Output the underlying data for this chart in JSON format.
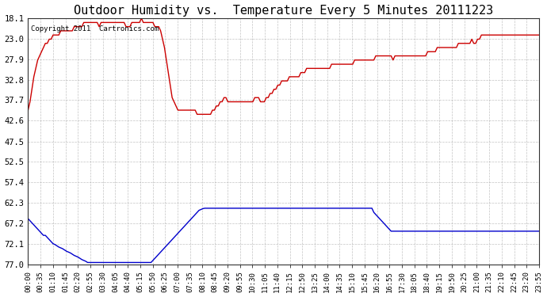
{
  "title": "Outdoor Humidity vs.  Temperature Every 5 Minutes 20111223",
  "copyright": "Copyright 2011  Cartronics.com",
  "background_color": "#ffffff",
  "plot_bg_color": "#ffffff",
  "grid_color": "#aaaaaa",
  "line1_color": "#cc0000",
  "line2_color": "#0000cc",
  "ylabel_right": [
    "77.0",
    "72.1",
    "67.2",
    "62.3",
    "57.4",
    "52.5",
    "47.5",
    "42.6",
    "37.7",
    "32.8",
    "27.9",
    "23.0",
    "18.1"
  ],
  "ylim": [
    18.1,
    77.0
  ],
  "yticks": [
    18.1,
    23.0,
    27.9,
    32.8,
    37.7,
    42.6,
    47.5,
    52.5,
    57.4,
    62.3,
    67.2,
    72.1,
    77.0
  ],
  "humidity_data": [
    55,
    57,
    60,
    63,
    65,
    67,
    68,
    69,
    70,
    71,
    71,
    72,
    72,
    73,
    73,
    73,
    73,
    74,
    74,
    74,
    74,
    74,
    74,
    74,
    75,
    75,
    75,
    75,
    75,
    76,
    76,
    76,
    76,
    76,
    76,
    76,
    76,
    75,
    76,
    76,
    76,
    76,
    76,
    76,
    76,
    76,
    76,
    76,
    76,
    76,
    76,
    75,
    75,
    75,
    76,
    76,
    76,
    76,
    76,
    77,
    76,
    76,
    76,
    76,
    76,
    76,
    75,
    75,
    75,
    74,
    72,
    70,
    67,
    64,
    61,
    58,
    57,
    56,
    55,
    55,
    55,
    55,
    55,
    55,
    55,
    55,
    55,
    55,
    54,
    54,
    54,
    54,
    54,
    54,
    54,
    54,
    55,
    55,
    56,
    56,
    57,
    57,
    58,
    58,
    57,
    57,
    57,
    57,
    57,
    57,
    57,
    57,
    57,
    57,
    57,
    57,
    57,
    57,
    58,
    58,
    58,
    57,
    57,
    57,
    58,
    58,
    59,
    59,
    60,
    60,
    61,
    61,
    62,
    62,
    62,
    62,
    63,
    63,
    63,
    63,
    63,
    63,
    64,
    64,
    64,
    65,
    65,
    65,
    65,
    65,
    65,
    65,
    65,
    65,
    65,
    65,
    65,
    65,
    66,
    66,
    66,
    66,
    66,
    66,
    66,
    66,
    66,
    66,
    66,
    66,
    67,
    67,
    67,
    67,
    67,
    67,
    67,
    67,
    67,
    67,
    67,
    68,
    68,
    68,
    68,
    68,
    68,
    68,
    68,
    68,
    67,
    68,
    68,
    68,
    68,
    68,
    68,
    68,
    68,
    68,
    68,
    68,
    68,
    68,
    68,
    68,
    68,
    68,
    69,
    69,
    69,
    69,
    69,
    70,
    70,
    70,
    70,
    70,
    70,
    70,
    70,
    70,
    70,
    70,
    71,
    71,
    71,
    71,
    71,
    71,
    71,
    72,
    71,
    71,
    72,
    72,
    73,
    73,
    73,
    73,
    73,
    73,
    73,
    73,
    73,
    73,
    73,
    73,
    73,
    73,
    73,
    73,
    73,
    73,
    73,
    73,
    73,
    73,
    73,
    73,
    73,
    73,
    73,
    73,
    73,
    73,
    73,
    73,
    73,
    73,
    73,
    73,
    73,
    73,
    73,
    73,
    73,
    73,
    73,
    73,
    73,
    73,
    73,
    73,
    73,
    73,
    73,
    73
  ],
  "temperature_data": [
    29,
    28.5,
    28,
    27.5,
    27,
    26.5,
    26,
    25.5,
    25,
    25,
    24.5,
    24,
    23.5,
    23,
    22.8,
    22.5,
    22.2,
    22,
    21.8,
    21.5,
    21.2,
    21,
    20.8,
    20.5,
    20.2,
    20,
    19.8,
    19.5,
    19.2,
    19,
    18.8,
    18.5,
    18.5,
    18.5,
    18.5,
    18.5,
    18.5,
    18.5,
    18.5,
    18.5,
    18.5,
    18.5,
    18.5,
    18.5,
    18.5,
    18.5,
    18.5,
    18.5,
    18.5,
    18.5,
    18.5,
    18.5,
    18.5,
    18.5,
    18.5,
    18.5,
    18.5,
    18.5,
    18.5,
    18.5,
    18.5,
    18.5,
    18.5,
    18.5,
    18.5,
    19,
    19.5,
    20,
    20.5,
    21,
    21.5,
    22,
    22.5,
    23,
    23.5,
    24,
    24.5,
    25,
    25.5,
    26,
    26.5,
    27,
    27.5,
    28,
    28.5,
    29,
    29.5,
    30,
    30.5,
    31,
    31.2,
    31.4,
    31.5,
    31.5,
    31.5,
    31.5,
    31.5,
    31.5,
    31.5,
    31.5,
    31.5,
    31.5,
    31.5,
    31.5,
    31.5,
    31.5,
    31.5,
    31.5,
    31.5,
    31.5,
    31.5,
    31.5,
    31.5,
    31.5,
    31.5,
    31.5,
    31.5,
    31.5,
    31.5,
    31.5,
    31.5,
    31.5,
    31.5,
    31.5,
    31.5,
    31.5,
    31.5,
    31.5,
    31.5,
    31.5,
    31.5,
    31.5,
    31.5,
    31.5,
    31.5,
    31.5,
    31.5,
    31.5,
    31.5,
    31.5,
    31.5,
    31.5,
    31.5,
    31.5,
    31.5,
    31.5,
    31.5,
    31.5,
    31.5,
    31.5,
    31.5,
    31.5,
    31.5,
    31.5,
    31.5,
    31.5,
    31.5,
    31.5,
    31.5,
    31.5,
    31.5,
    31.5,
    31.5,
    31.5,
    31.5,
    31.5,
    31.5,
    31.5,
    31.5,
    31.5,
    31.5,
    31.5,
    31.5,
    31.5,
    31.5,
    31.5,
    31.5,
    31.5,
    31.5,
    31.5,
    30.5,
    30,
    29.5,
    29,
    28.5,
    28,
    27.5,
    27,
    26.5,
    26,
    26,
    26,
    26,
    26,
    26,
    26,
    26,
    26,
    26,
    26,
    26,
    26,
    26,
    26,
    26,
    26,
    26,
    26,
    26,
    26,
    26,
    26,
    26,
    26,
    26,
    26,
    26,
    26,
    26,
    26,
    26,
    26,
    26,
    26,
    26,
    26,
    26,
    26,
    26,
    26,
    26,
    26,
    26,
    26,
    26,
    26,
    26,
    26,
    26,
    26,
    26,
    26,
    26,
    26,
    26,
    26,
    26,
    26,
    26,
    26,
    26,
    26,
    26,
    26,
    26,
    26,
    26,
    26,
    26,
    26,
    26,
    26,
    26,
    26,
    26,
    26,
    26
  ],
  "xtick_labels": [
    "00:00",
    "00:35",
    "01:10",
    "01:45",
    "02:20",
    "02:55",
    "03:30",
    "04:05",
    "04:40",
    "05:15",
    "05:50",
    "06:25",
    "07:00",
    "07:35",
    "08:10",
    "08:45",
    "09:20",
    "09:55",
    "10:30",
    "11:05",
    "11:40",
    "12:15",
    "12:50",
    "13:25",
    "14:00",
    "14:35",
    "15:10",
    "15:45",
    "16:20",
    "16:55",
    "17:30",
    "18:05",
    "18:40",
    "19:15",
    "19:50",
    "20:25",
    "21:00",
    "21:35",
    "22:10",
    "22:45",
    "23:20",
    "23:55"
  ]
}
